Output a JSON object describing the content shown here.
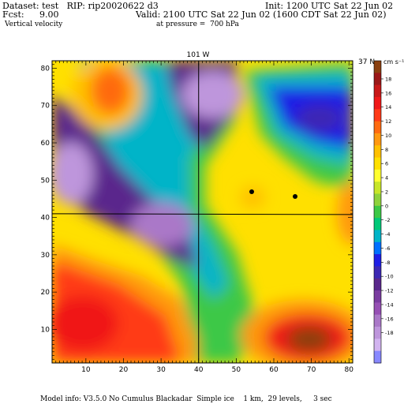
{
  "header": {
    "dataset_line": "Dataset: test   RIP: rip20020622 d3",
    "init_line": "Init: 1200 UTC Sat 22 Jun 02",
    "fcst_label": "Fcst:",
    "fcst_value": "9.00",
    "valid_line": "Valid: 2100 UTC Sat 22 Jun 02 (1600 CDT Sat 22 Jun 02)",
    "field_name": "Vertical velocity",
    "pressure_line": "at pressure =  700 hPa"
  },
  "map": {
    "top_label": "101 W",
    "right_label": "37 N",
    "x_ticks": [
      "10",
      "20",
      "30",
      "40",
      "50",
      "60",
      "70",
      "80"
    ],
    "y_ticks": [
      "10",
      "20",
      "30",
      "40",
      "50",
      "60",
      "70",
      "80"
    ],
    "x_range": [
      1,
      81
    ],
    "y_range": [
      1,
      82
    ],
    "meridian_x": 40,
    "parallel_y": 41
  },
  "colorbar": {
    "units": "cm s⁻¹",
    "labels": [
      "18",
      "16",
      "14",
      "12",
      "10",
      "8",
      "6",
      "4",
      "2",
      "0",
      "-2",
      "-4",
      "-6",
      "-8",
      "-10",
      "-12",
      "-14",
      "-16",
      "-18"
    ],
    "colors": [
      "#8a4010",
      "#9b1818",
      "#c81818",
      "#f01818",
      "#ff3a18",
      "#ff6a10",
      "#ff9810",
      "#ffc000",
      "#ffe000",
      "#ffff30",
      "#c8e628",
      "#8ed23c",
      "#3cc846",
      "#00c878",
      "#00b4c8",
      "#0070ff",
      "#1e1ee6",
      "#3c28b4",
      "#5a288c",
      "#7a3ca0",
      "#9650b4",
      "#aa78c8",
      "#be96dc",
      "#d2b4f0",
      "#8888ff"
    ]
  },
  "footer": {
    "model_info": "Model info: V3.5.0 No Cumulus Blackadar  Simple ice    1 km,  29 levels,     3 sec"
  }
}
